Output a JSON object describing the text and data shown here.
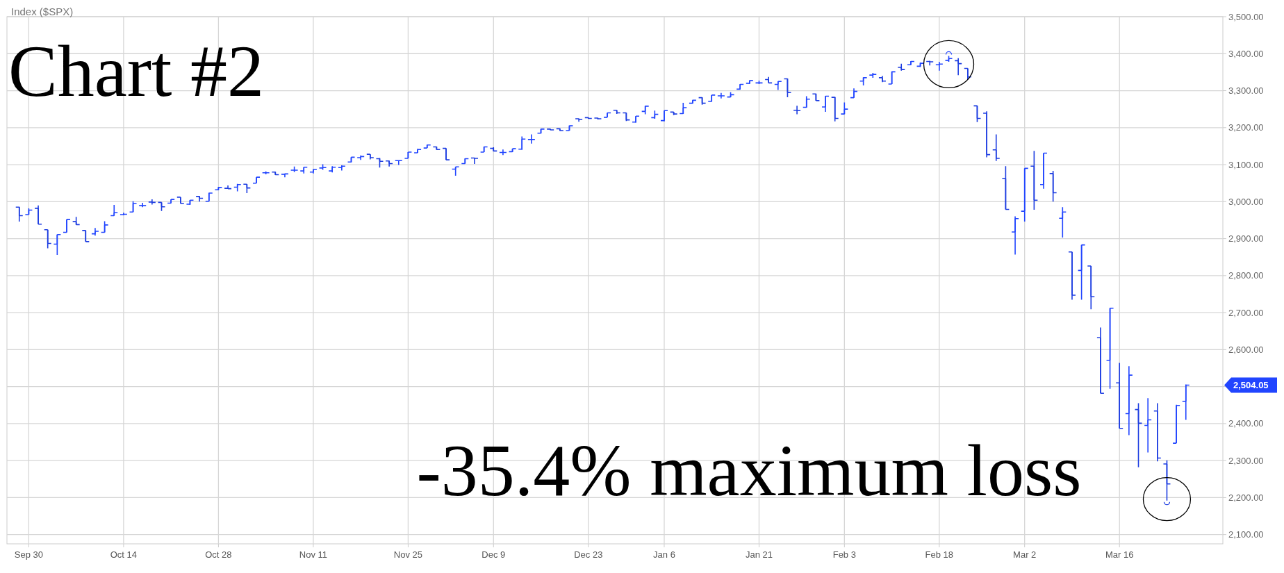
{
  "chart_data": {
    "type": "candlestick",
    "title": "Index ($SPX)",
    "categories": [
      null,
      "Sep 30",
      null,
      null,
      null,
      null,
      null,
      null,
      null,
      null,
      null,
      "Oct 14",
      null,
      null,
      null,
      null,
      null,
      null,
      null,
      null,
      null,
      "Oct 28",
      null,
      null,
      null,
      null,
      null,
      null,
      null,
      null,
      null,
      "Nov 11",
      null,
      null,
      null,
      null,
      null,
      null,
      null,
      null,
      null,
      "Nov 25",
      null,
      null,
      null,
      null,
      null,
      null,
      null,
      null,
      "Dec 9",
      null,
      null,
      null,
      null,
      null,
      null,
      null,
      null,
      null,
      "Dec 23",
      null,
      null,
      null,
      null,
      null,
      null,
      null,
      "Jan 6",
      null,
      null,
      null,
      null,
      null,
      null,
      null,
      null,
      null,
      "Jan 21",
      null,
      null,
      null,
      null,
      null,
      null,
      null,
      null,
      "Feb 3",
      null,
      null,
      null,
      null,
      null,
      null,
      null,
      null,
      null,
      "Feb 18",
      null,
      null,
      null,
      null,
      null,
      null,
      null,
      null,
      "Mar 2",
      null,
      null,
      null,
      null,
      null,
      null,
      null,
      null,
      null,
      "Mar 16",
      null,
      null,
      null,
      null,
      null,
      null,
      null
    ],
    "ohlc": [
      [
        2985,
        2986,
        2946,
        2962
      ],
      [
        2965,
        2982,
        2965,
        2977
      ],
      [
        2982,
        2990,
        2939,
        2939
      ],
      [
        2924,
        2924,
        2874,
        2887
      ],
      [
        2885,
        2911,
        2856,
        2911
      ],
      [
        2917,
        2952,
        2917,
        2952
      ],
      [
        2946,
        2959,
        2937,
        2938
      ],
      [
        2922,
        2922,
        2892,
        2892
      ],
      [
        2913,
        2929,
        2908,
        2920
      ],
      [
        2917,
        2947,
        2917,
        2937
      ],
      [
        2962,
        2991,
        2962,
        2970
      ],
      [
        2965,
        2970,
        2963,
        2966
      ],
      [
        2972,
        3001,
        2972,
        2995
      ],
      [
        2989,
        2997,
        2985,
        2989
      ],
      [
        2999,
        3006,
        2992,
        2998
      ],
      [
        2998,
        2998,
        2975,
        2986
      ],
      [
        2996,
        3006,
        2996,
        3006
      ],
      [
        3012,
        3012,
        2995,
        2995
      ],
      [
        2993,
        3004,
        2991,
        3004
      ],
      [
        3014,
        3015,
        3000,
        3009
      ],
      [
        3001,
        3024,
        3001,
        3023
      ],
      [
        3032,
        3040,
        3031,
        3038
      ],
      [
        3036,
        3044,
        3035,
        3035
      ],
      [
        3039,
        3048,
        3028,
        3046
      ],
      [
        3047,
        3047,
        3023,
        3037
      ],
      [
        3050,
        3066,
        3050,
        3066
      ],
      [
        3078,
        3082,
        3074,
        3078
      ],
      [
        3080,
        3081,
        3072,
        3073
      ],
      [
        3074,
        3076,
        3066,
        3075
      ],
      [
        3085,
        3095,
        3080,
        3085
      ],
      [
        3083,
        3093,
        3076,
        3093
      ],
      [
        3080,
        3088,
        3076,
        3087
      ],
      [
        3091,
        3101,
        3086,
        3092
      ],
      [
        3083,
        3096,
        3079,
        3093
      ],
      [
        3092,
        3098,
        3084,
        3096
      ],
      [
        3107,
        3120,
        3106,
        3120
      ],
      [
        3119,
        3125,
        3113,
        3122
      ],
      [
        3128,
        3128,
        3114,
        3119
      ],
      [
        3116,
        3118,
        3092,
        3109
      ],
      [
        3110,
        3111,
        3095,
        3103
      ],
      [
        3111,
        3112,
        3099,
        3111
      ],
      [
        3117,
        3134,
        3117,
        3134
      ],
      [
        3132,
        3143,
        3132,
        3141
      ],
      [
        3145,
        3154,
        3145,
        3153
      ],
      [
        3148,
        3149,
        3140,
        3141
      ],
      [
        3144,
        3144,
        3113,
        3113
      ],
      [
        3088,
        3094,
        3070,
        3094
      ],
      [
        3103,
        3117,
        3103,
        3116
      ],
      [
        3118,
        3119,
        3102,
        3117
      ],
      [
        3134,
        3149,
        3134,
        3148
      ],
      [
        3144,
        3147,
        3136,
        3137
      ],
      [
        3133,
        3141,
        3126,
        3133
      ],
      [
        3135,
        3143,
        3134,
        3143
      ],
      [
        3142,
        3176,
        3140,
        3169
      ],
      [
        3168,
        3182,
        3157,
        3168
      ],
      [
        3185,
        3197,
        3184,
        3196
      ],
      [
        3196,
        3197,
        3193,
        3194
      ],
      [
        3197,
        3198,
        3191,
        3192
      ],
      [
        3192,
        3206,
        3192,
        3205
      ],
      [
        3224,
        3225,
        3216,
        3222
      ],
      [
        3227,
        3228,
        3224,
        3225
      ],
      [
        3226,
        3227,
        3222,
        3224
      ],
      [
        3228,
        3240,
        3228,
        3240
      ],
      [
        3247,
        3247,
        3237,
        3240
      ],
      [
        3240,
        3240,
        3218,
        3221
      ],
      [
        3215,
        3231,
        3213,
        3231
      ],
      [
        3244,
        3259,
        3236,
        3258
      ],
      [
        3227,
        3246,
        3224,
        3236
      ],
      [
        3219,
        3246,
        3217,
        3246
      ],
      [
        3242,
        3243,
        3234,
        3237
      ],
      [
        3238,
        3267,
        3237,
        3254
      ],
      [
        3266,
        3275,
        3265,
        3274
      ],
      [
        3281,
        3282,
        3262,
        3266
      ],
      [
        3271,
        3288,
        3270,
        3288
      ],
      [
        3286,
        3294,
        3279,
        3286
      ],
      [
        3283,
        3296,
        3282,
        3289
      ],
      [
        3304,
        3318,
        3303,
        3317
      ],
      [
        3320,
        3328,
        3318,
        3327
      ],
      [
        3321,
        3327,
        3318,
        3321
      ],
      [
        3330,
        3337,
        3321,
        3321
      ],
      [
        3317,
        3325,
        3302,
        3325
      ],
      [
        3332,
        3333,
        3282,
        3295
      ],
      [
        3247,
        3259,
        3236,
        3246
      ],
      [
        3255,
        3285,
        3254,
        3277
      ],
      [
        3291,
        3292,
        3273,
        3273
      ],
      [
        3256,
        3286,
        3243,
        3285
      ],
      [
        3282,
        3283,
        3217,
        3225
      ],
      [
        3237,
        3268,
        3236,
        3250
      ],
      [
        3281,
        3306,
        3281,
        3298
      ],
      [
        3326,
        3336,
        3314,
        3335
      ],
      [
        3342,
        3348,
        3335,
        3344
      ],
      [
        3335,
        3340,
        3323,
        3326
      ],
      [
        3318,
        3352,
        3318,
        3351
      ],
      [
        3363,
        3373,
        3354,
        3357
      ],
      [
        3370,
        3380,
        3369,
        3379
      ],
      [
        3366,
        3376,
        3364,
        3374
      ],
      [
        3379,
        3381,
        3368,
        3378
      ],
      [
        3370,
        3378,
        3354,
        3372
      ],
      [
        3382,
        3394,
        3378,
        3387
      ],
      [
        3381,
        3388,
        3342,
        3373
      ],
      [
        3360,
        3360,
        3329,
        3337
      ],
      [
        3259,
        3259,
        3215,
        3225
      ],
      [
        3239,
        3244,
        3120,
        3127
      ],
      [
        3140,
        3182,
        3110,
        3117
      ],
      [
        3062,
        3096,
        2979,
        2979
      ],
      [
        2918,
        2960,
        2857,
        2954
      ],
      [
        2974,
        3090,
        2946,
        3090
      ],
      [
        3096,
        3137,
        2978,
        3004
      ],
      [
        3046,
        3131,
        3035,
        3131
      ],
      [
        3076,
        3083,
        3000,
        3024
      ],
      [
        2955,
        2985,
        2903,
        2972
      ],
      [
        2864,
        2864,
        2735,
        2747
      ],
      [
        2814,
        2883,
        2735,
        2883
      ],
      [
        2826,
        2826,
        2709,
        2743
      ],
      [
        2632,
        2660,
        2482,
        2482
      ],
      [
        2571,
        2712,
        2494,
        2712
      ],
      [
        2510,
        2564,
        2387,
        2387
      ],
      [
        2427,
        2555,
        2369,
        2531
      ],
      [
        2438,
        2455,
        2282,
        2401
      ],
      [
        2395,
        2469,
        2322,
        2410
      ],
      [
        2434,
        2455,
        2298,
        2307
      ],
      [
        2291,
        2301,
        2192,
        2237
      ],
      [
        2347,
        2451,
        2347,
        2449
      ],
      [
        2460,
        2506,
        2410,
        2504.05
      ]
    ],
    "colors": [
      "#1d3de1",
      "#2145ff",
      "#1d3de1",
      "#1d3de1",
      "#2145ff",
      "#2145ff",
      "#1d3de1",
      "#1d3de1",
      "#2145ff",
      "#2145ff",
      "#2145ff",
      "#2145ff",
      "#2145ff",
      "#2145ff",
      "#1d3de1",
      "#1d3de1",
      "#2145ff",
      "#1d3de1",
      "#2145ff",
      "#1d3de1",
      "#2145ff",
      "#2145ff",
      "#1d3de1",
      "#2145ff",
      "#1d3de1",
      "#2145ff",
      "#2145ff",
      "#1d3de1",
      "#2145ff",
      "#2145ff",
      "#2145ff",
      "#2145ff",
      "#2145ff",
      "#2145ff",
      "#2145ff",
      "#2145ff",
      "#2145ff",
      "#1d3de1",
      "#1d3de1",
      "#1d3de1",
      "#2145ff",
      "#2145ff",
      "#2145ff",
      "#2145ff",
      "#1d3de1",
      "#1d3de1",
      "#2145ff",
      "#2145ff",
      "#1d3de1",
      "#2145ff",
      "#1d3de1",
      "#2145ff",
      "#2145ff",
      "#2145ff",
      "#2145ff",
      "#2145ff",
      "#1d3de1",
      "#1d3de1",
      "#2145ff",
      "#1d3de1",
      "#1d3de1",
      "#1d3de1",
      "#2145ff",
      "#1d3de1",
      "#1d3de1",
      "#2145ff",
      "#2145ff",
      "#2145ff",
      "#2145ff",
      "#1d3de1",
      "#2145ff",
      "#2145ff",
      "#1d3de1",
      "#2145ff",
      "#2145ff",
      "#2145ff",
      "#2145ff",
      "#2145ff",
      "#2145ff",
      "#1d3de1",
      "#2145ff",
      "#1d3de1",
      "#1d3de1",
      "#2145ff",
      "#1d3de1",
      "#2145ff",
      "#1d3de1",
      "#2145ff",
      "#2145ff",
      "#2145ff",
      "#2145ff",
      "#1d3de1",
      "#2145ff",
      "#1d3de1",
      "#2145ff",
      "#2145ff",
      "#1d3de1",
      "#2145ff",
      "#2145ff",
      "#1d3de1",
      "#1d3de1",
      "#1d3de1",
      "#1d3de1",
      "#1d3de1",
      "#1d3de1",
      "#2145ff",
      "#2145ff",
      "#1d3de1",
      "#2145ff",
      "#1d3de1",
      "#2145ff",
      "#1d3de1",
      "#2145ff",
      "#1d3de1",
      "#1d3de1",
      "#2145ff",
      "#1d3de1",
      "#2145ff",
      "#1d3de1",
      "#2145ff",
      "#1d3de1",
      "#1d3de1",
      "#2145ff",
      "#2145ff"
    ],
    "ylim": [
      2075,
      3500
    ],
    "yticks": [
      {
        "value": 2100,
        "label": "2,100.00"
      },
      {
        "value": 2200,
        "label": "2,200.00"
      },
      {
        "value": 2300,
        "label": "2,300.00"
      },
      {
        "value": 2400,
        "label": "2,400.00"
      },
      {
        "value": 2500,
        "label": null
      },
      {
        "value": 2600,
        "label": "2,600.00"
      },
      {
        "value": 2700,
        "label": "2,700.00"
      },
      {
        "value": 2800,
        "label": "2,800.00"
      },
      {
        "value": 2900,
        "label": "2,900.00"
      },
      {
        "value": 3000,
        "label": "3,000.00"
      },
      {
        "value": 3100,
        "label": "3,100.00"
      },
      {
        "value": 3200,
        "label": "3,200.00"
      },
      {
        "value": 3300,
        "label": "3,300.00"
      },
      {
        "value": 3400,
        "label": "3,400.00"
      },
      {
        "value": 3500,
        "label": "3,500.00"
      }
    ],
    "grid": true,
    "annotations": [
      "Chart #2",
      "-35.4% maximum loss",
      "2,504.05"
    ]
  }
}
